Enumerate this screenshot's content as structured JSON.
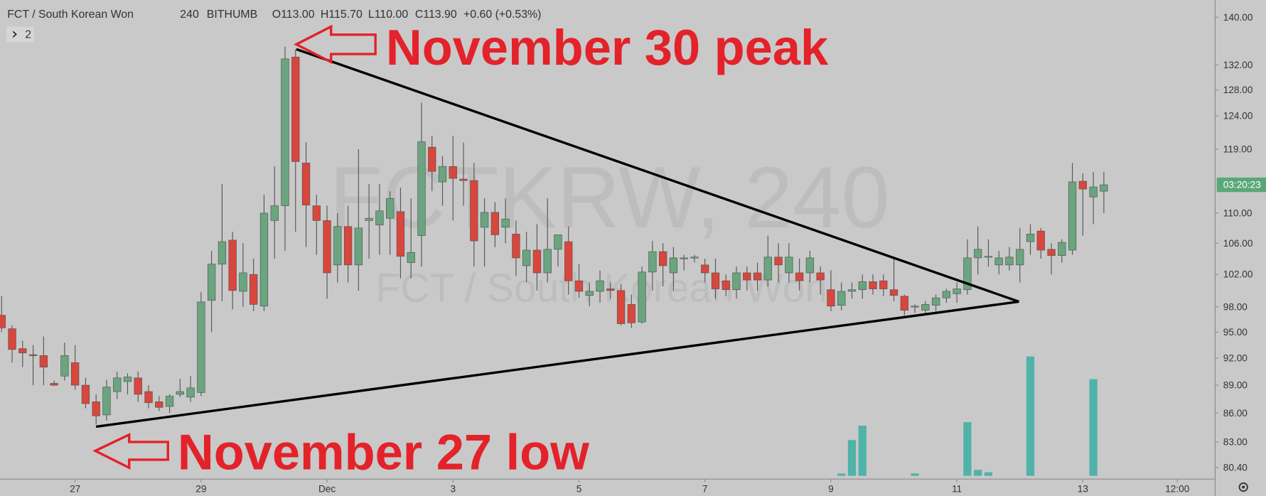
{
  "chart_data": {
    "type": "candlestick",
    "title": "FCT / South Korean Won",
    "interval": "240",
    "exchange": "BITHUMB",
    "ohlc": [
      "O113.00",
      "H115.70",
      "L110.00",
      "C113.90"
    ],
    "change": "+0.60 (+0.53%)",
    "indicator_badge": "2",
    "watermark": "FCTKRW, 240",
    "countdown": "03:20:23",
    "annotations": [
      "November 30 peak",
      "November 27 low"
    ],
    "log_scale": true,
    "grid": false,
    "up_color": "#6aa57f",
    "down_color": "#d9463c",
    "volume_color": "#4fb3a9",
    "countdown_color": "#5aa77a",
    "xlim": [
      -0.154,
      115.6
    ],
    "xticks": [
      {
        "value": 7,
        "label": "27"
      },
      {
        "value": 19,
        "label": "29"
      },
      {
        "value": 31,
        "label": "Dec"
      },
      {
        "value": 43,
        "label": "3"
      },
      {
        "value": 55,
        "label": "5"
      },
      {
        "value": 67,
        "label": "7"
      },
      {
        "value": 79,
        "label": "9"
      },
      {
        "value": 91,
        "label": "11"
      },
      {
        "value": 103,
        "label": "13"
      },
      {
        "value": 112,
        "label": "12:00"
      }
    ],
    "ylim": [
      79.6,
      143
    ],
    "yticks": [
      {
        "value": 140,
        "label": "140.00"
      },
      {
        "value": 132,
        "label": "132.00"
      },
      {
        "value": 128,
        "label": "128.00"
      },
      {
        "value": 124,
        "label": "124.00"
      },
      {
        "value": 119,
        "label": "119.00"
      },
      {
        "value": 110,
        "label": "110.00"
      },
      {
        "value": 106,
        "label": "106.00"
      },
      {
        "value": 102,
        "label": "102.00"
      },
      {
        "value": 98,
        "label": "98.00"
      },
      {
        "value": 95,
        "label": "95.00"
      },
      {
        "value": 92,
        "label": "92.00"
      },
      {
        "value": 89,
        "label": "89.00"
      },
      {
        "value": 86,
        "label": "86.00"
      },
      {
        "value": 83,
        "label": "83.00"
      },
      {
        "value": 80.4,
        "label": "80.40"
      }
    ],
    "open": [
      97.0,
      95.4,
      93.1,
      92.4,
      92.3,
      89.2,
      90,
      91.5,
      89,
      87.2,
      85.8,
      88.3,
      89.4,
      89.8,
      88.3,
      87.2,
      86.7,
      88,
      87.7,
      88.2,
      98.8,
      103.3,
      106.4,
      99.9,
      102,
      98.1,
      109,
      111,
      133.3,
      117,
      111,
      109,
      103.2,
      108.2,
      103.2,
      109,
      108.4,
      109.3,
      110.2,
      103.5,
      107,
      119.3,
      114.3,
      116.5,
      114.7,
      114.5,
      108.1,
      110.1,
      108.1,
      107.2,
      103.1,
      105.1,
      102.2,
      105.2,
      106.2,
      101.2,
      99.4,
      99.9,
      100.2,
      100,
      98.3,
      96.2,
      102.3,
      104.9,
      102.2,
      104,
      104.1,
      103.2,
      102.2,
      101.2,
      100.1,
      102.2,
      102.2,
      101.3,
      104.2,
      102.2,
      102.2,
      102.2,
      102.2,
      100.1,
      98.2,
      99.9,
      100.1,
      101.1,
      101.2,
      100.1,
      99.3,
      98,
      97.6,
      98.2,
      99.1,
      99.6,
      100.1,
      104.1,
      104.2,
      103.2,
      103.2,
      103.2,
      106.2,
      107.6,
      105.2,
      104.4,
      105.1,
      114.4,
      112.2,
      113.0
    ],
    "high": [
      99.3,
      95.8,
      94,
      93.5,
      94.5,
      89.5,
      93.8,
      93.5,
      89.8,
      88,
      89.6,
      90.5,
      90.3,
      90.5,
      89,
      87.8,
      88,
      89.7,
      90,
      99.8,
      105,
      114,
      107.5,
      106,
      104,
      112.5,
      116.5,
      135,
      134.6,
      120,
      112.5,
      111,
      110,
      111,
      119,
      114,
      114,
      113,
      113.5,
      112,
      126,
      121,
      118,
      121,
      120,
      117,
      112,
      111.5,
      112,
      109,
      107.5,
      108.5,
      112,
      107,
      108.2,
      103.3,
      101,
      102.5,
      101,
      100.8,
      99.5,
      103,
      106.3,
      106,
      105.5,
      104.5,
      104.5,
      104,
      104,
      102,
      103,
      103,
      103.5,
      107,
      106,
      106,
      104,
      105,
      103,
      102.5,
      101,
      101,
      102,
      102,
      102,
      104,
      99.5,
      98.3,
      98.7,
      99.5,
      100.2,
      101,
      106.5,
      108.2,
      106.5,
      105,
      105.5,
      108,
      108.5,
      108,
      106,
      106.5,
      117,
      115.5,
      115.7,
      115.7
    ],
    "low": [
      95,
      91.5,
      91,
      89,
      89,
      88.9,
      89.5,
      88.5,
      86.5,
      84.8,
      85.2,
      87.5,
      88,
      87.2,
      86.5,
      86.2,
      86,
      87.7,
      87.2,
      87.8,
      95,
      98.7,
      97.7,
      98,
      97.5,
      97.5,
      104,
      105,
      107.5,
      105.5,
      104.5,
      99,
      101,
      101,
      100,
      104,
      104.5,
      104.5,
      101.5,
      101.5,
      103,
      113,
      111,
      109,
      111,
      103,
      103,
      105.5,
      106,
      101.8,
      101,
      100,
      101,
      103,
      99.5,
      99.1,
      98.1,
      98.5,
      99,
      95.8,
      95.5,
      96,
      100,
      100.5,
      100,
      102.5,
      103.5,
      101,
      99,
      99.3,
      99,
      100,
      100,
      100.5,
      101,
      101,
      100,
      101,
      99.5,
      97.5,
      97.6,
      99,
      99,
      99.5,
      99.3,
      98.7,
      97,
      97.3,
      97,
      97.5,
      98.5,
      98.5,
      99.5,
      102,
      103,
      102,
      102.5,
      101,
      104.5,
      104,
      102,
      103.5,
      104.5,
      107,
      108.5,
      110
    ],
    "close": [
      95.5,
      93.0,
      92.6,
      92.3,
      91.0,
      89.0,
      92.3,
      89.0,
      87.0,
      85.7,
      88.8,
      89.8,
      89.9,
      88.0,
      87.1,
      86.6,
      87.8,
      88.3,
      88.7,
      98.6,
      103.3,
      106.2,
      100,
      102.2,
      98.3,
      110,
      111,
      133,
      117.2,
      111.1,
      109,
      102.2,
      108.2,
      103.2,
      108,
      109.3,
      110.3,
      112,
      104.3,
      104.8,
      120.1,
      115.8,
      116.5,
      114.8,
      114.5,
      106.3,
      110.1,
      107.1,
      109.2,
      104.1,
      105.1,
      102.2,
      105.2,
      107.1,
      101.2,
      99.9,
      99.9,
      101.2,
      100.0,
      96,
      96.1,
      102.3,
      104.9,
      103.1,
      104.1,
      104.1,
      104.2,
      102.2,
      100.2,
      100.1,
      102.2,
      101.3,
      101.3,
      104.2,
      103.2,
      104.2,
      101.2,
      104.1,
      101.3,
      98.1,
      99.9,
      100.1,
      101.1,
      100.2,
      100.2,
      99.4,
      97.6,
      98.1,
      98.3,
      99.1,
      99.9,
      100.2,
      104.1,
      105.2,
      104.3,
      104.1,
      104.2,
      105.2,
      107.2,
      105.1,
      104.4,
      106.1,
      114.3,
      113.3,
      113.6,
      113.9
    ],
    "volume": [
      0,
      0,
      0,
      0,
      0,
      0,
      0,
      0,
      0,
      0,
      0,
      0,
      0,
      0,
      0,
      0,
      0,
      0,
      0,
      0,
      0,
      0,
      0,
      0,
      0,
      0,
      0,
      0,
      0,
      0,
      0,
      0,
      0,
      0,
      0,
      0,
      0,
      0,
      0,
      0,
      0,
      0,
      0,
      0,
      0,
      0,
      0,
      0,
      0,
      0,
      0,
      0,
      0,
      0,
      0,
      0,
      0,
      0,
      0,
      0,
      0,
      0,
      0,
      0,
      0,
      0,
      0,
      0,
      0,
      0,
      0,
      0,
      0,
      0,
      0,
      0,
      0,
      0,
      0,
      0,
      2,
      30,
      42,
      0,
      0,
      0,
      0,
      2,
      0,
      0,
      0,
      0,
      45,
      5,
      3,
      0,
      0,
      0,
      100,
      0,
      0,
      0,
      0,
      0,
      81,
      0
    ]
  }
}
